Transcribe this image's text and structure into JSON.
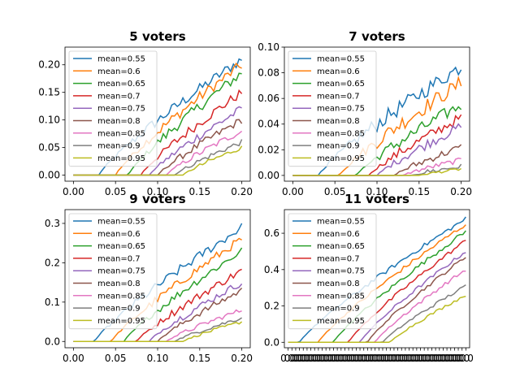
{
  "chart_data": [
    {
      "type": "line",
      "title": "5 voters",
      "xlabel": "",
      "ylabel": "",
      "xlim": [
        -0.01,
        0.21
      ],
      "ylim": [
        -0.011,
        0.232
      ],
      "xticks": [
        0.0,
        0.05,
        0.1,
        0.15,
        0.2
      ],
      "xtick_labels": [
        "0.00",
        "0.05",
        "0.10",
        "0.15",
        "0.20"
      ],
      "yticks": [
        0.0,
        0.05,
        0.1,
        0.15,
        0.2
      ],
      "ytick_labels": [
        "0.00",
        "0.05",
        "0.10",
        "0.15",
        "0.20"
      ],
      "legend_position": "upper-left",
      "x_range": [
        0.0,
        0.2
      ],
      "series": [
        {
          "name": "mean=0.55",
          "color": "#1f77b4",
          "onset": 0.03,
          "end": 0.21,
          "noise": 0.01
        },
        {
          "name": "mean=0.6",
          "color": "#ff7f0e",
          "onset": 0.05,
          "end": 0.2,
          "noise": 0.01
        },
        {
          "name": "mean=0.65",
          "color": "#2ca02c",
          "onset": 0.065,
          "end": 0.185,
          "noise": 0.01
        },
        {
          "name": "mean=0.7",
          "color": "#d62728",
          "onset": 0.08,
          "end": 0.15,
          "noise": 0.009
        },
        {
          "name": "mean=0.75",
          "color": "#9467bd",
          "onset": 0.09,
          "end": 0.12,
          "noise": 0.008
        },
        {
          "name": "mean=0.8",
          "color": "#8c564b",
          "onset": 0.1,
          "end": 0.1,
          "noise": 0.007
        },
        {
          "name": "mean=0.85",
          "color": "#e377c2",
          "onset": 0.11,
          "end": 0.08,
          "noise": 0.006
        },
        {
          "name": "mean=0.9",
          "color": "#7f7f7f",
          "onset": 0.12,
          "end": 0.06,
          "noise": 0.005
        },
        {
          "name": "mean=0.95",
          "color": "#bcbd22",
          "onset": 0.13,
          "end": 0.05,
          "noise": 0.004
        }
      ]
    },
    {
      "type": "line",
      "title": "7 voters",
      "xlabel": "",
      "ylabel": "",
      "xlim": [
        -0.01,
        0.21
      ],
      "ylim": [
        -0.0045,
        0.1
      ],
      "xticks": [
        0.0,
        0.05,
        0.1,
        0.15,
        0.2
      ],
      "xtick_labels": [
        "0.00",
        "0.05",
        "0.10",
        "0.15",
        "0.20"
      ],
      "yticks": [
        0.0,
        0.02,
        0.04,
        0.06,
        0.08,
        0.1
      ],
      "ytick_labels": [
        "0.00",
        "0.02",
        "0.04",
        "0.06",
        "0.08",
        "0.10"
      ],
      "legend_position": "upper-left",
      "x_range": [
        0.0,
        0.2
      ],
      "series": [
        {
          "name": "mean=0.55",
          "color": "#1f77b4",
          "onset": 0.03,
          "end": 0.085,
          "noise": 0.006
        },
        {
          "name": "mean=0.6",
          "color": "#ff7f0e",
          "onset": 0.055,
          "end": 0.072,
          "noise": 0.006
        },
        {
          "name": "mean=0.65",
          "color": "#2ca02c",
          "onset": 0.075,
          "end": 0.055,
          "noise": 0.005
        },
        {
          "name": "mean=0.7",
          "color": "#d62728",
          "onset": 0.09,
          "end": 0.045,
          "noise": 0.004
        },
        {
          "name": "mean=0.75",
          "color": "#9467bd",
          "onset": 0.1,
          "end": 0.038,
          "noise": 0.004
        },
        {
          "name": "mean=0.8",
          "color": "#8c564b",
          "onset": 0.12,
          "end": 0.022,
          "noise": 0.003
        },
        {
          "name": "mean=0.85",
          "color": "#e377c2",
          "onset": 0.13,
          "end": 0.012,
          "noise": 0.002
        },
        {
          "name": "mean=0.9",
          "color": "#7f7f7f",
          "onset": 0.14,
          "end": 0.007,
          "noise": 0.002
        },
        {
          "name": "mean=0.95",
          "color": "#bcbd22",
          "onset": 0.15,
          "end": 0.005,
          "noise": 0.001
        }
      ]
    },
    {
      "type": "line",
      "title": "9 voters",
      "xlabel": "",
      "ylabel": "",
      "xlim": [
        -0.01,
        0.21
      ],
      "ylim": [
        -0.016,
        0.335
      ],
      "xticks": [
        0.0,
        0.05,
        0.1,
        0.15,
        0.2
      ],
      "xtick_labels": [
        "0.00",
        "0.05",
        "0.10",
        "0.15",
        "0.20"
      ],
      "yticks": [
        0.0,
        0.1,
        0.2,
        0.3
      ],
      "ytick_labels": [
        "0.0",
        "0.1",
        "0.2",
        "0.3"
      ],
      "legend_position": "upper-left",
      "x_range": [
        0.0,
        0.2
      ],
      "series": [
        {
          "name": "mean=0.55",
          "color": "#1f77b4",
          "onset": 0.025,
          "end": 0.29,
          "noise": 0.012
        },
        {
          "name": "mean=0.6",
          "color": "#ff7f0e",
          "onset": 0.045,
          "end": 0.26,
          "noise": 0.011
        },
        {
          "name": "mean=0.65",
          "color": "#2ca02c",
          "onset": 0.06,
          "end": 0.23,
          "noise": 0.01
        },
        {
          "name": "mean=0.7",
          "color": "#d62728",
          "onset": 0.075,
          "end": 0.18,
          "noise": 0.01
        },
        {
          "name": "mean=0.75",
          "color": "#9467bd",
          "onset": 0.09,
          "end": 0.15,
          "noise": 0.009
        },
        {
          "name": "mean=0.8",
          "color": "#8c564b",
          "onset": 0.1,
          "end": 0.13,
          "noise": 0.008
        },
        {
          "name": "mean=0.85",
          "color": "#e377c2",
          "onset": 0.11,
          "end": 0.08,
          "noise": 0.006
        },
        {
          "name": "mean=0.9",
          "color": "#7f7f7f",
          "onset": 0.12,
          "end": 0.06,
          "noise": 0.005
        },
        {
          "name": "mean=0.95",
          "color": "#bcbd22",
          "onset": 0.13,
          "end": 0.05,
          "noise": 0.004
        }
      ]
    },
    {
      "type": "line",
      "title": "11 voters",
      "xlabel": "",
      "ylabel": "",
      "xlim": [
        -1,
        48
      ],
      "ylim": [
        -0.03,
        0.73
      ],
      "xtick_count": 48,
      "xtick_label_text": "0.0",
      "yticks": [
        0.0,
        0.2,
        0.4,
        0.6
      ],
      "ytick_labels": [
        "0.0",
        "0.2",
        "0.4",
        "0.6"
      ],
      "legend_position": "upper-left",
      "x_range": [
        0,
        47
      ],
      "series": [
        {
          "name": "mean=0.55",
          "color": "#1f77b4",
          "onset": 3,
          "end": 0.68,
          "noise": 0.012
        },
        {
          "name": "mean=0.6",
          "color": "#ff7f0e",
          "onset": 8,
          "end": 0.65,
          "noise": 0.012
        },
        {
          "name": "mean=0.65",
          "color": "#2ca02c",
          "onset": 12,
          "end": 0.61,
          "noise": 0.012
        },
        {
          "name": "mean=0.7",
          "color": "#d62728",
          "onset": 16,
          "end": 0.56,
          "noise": 0.011
        },
        {
          "name": "mean=0.75",
          "color": "#9467bd",
          "onset": 19,
          "end": 0.5,
          "noise": 0.01
        },
        {
          "name": "mean=0.8",
          "color": "#8c564b",
          "onset": 21,
          "end": 0.47,
          "noise": 0.01
        },
        {
          "name": "mean=0.85",
          "color": "#e377c2",
          "onset": 23,
          "end": 0.4,
          "noise": 0.01
        },
        {
          "name": "mean=0.9",
          "color": "#7f7f7f",
          "onset": 25,
          "end": 0.31,
          "noise": 0.009
        },
        {
          "name": "mean=0.95",
          "color": "#bcbd22",
          "onset": 27,
          "end": 0.26,
          "noise": 0.008
        }
      ]
    }
  ]
}
